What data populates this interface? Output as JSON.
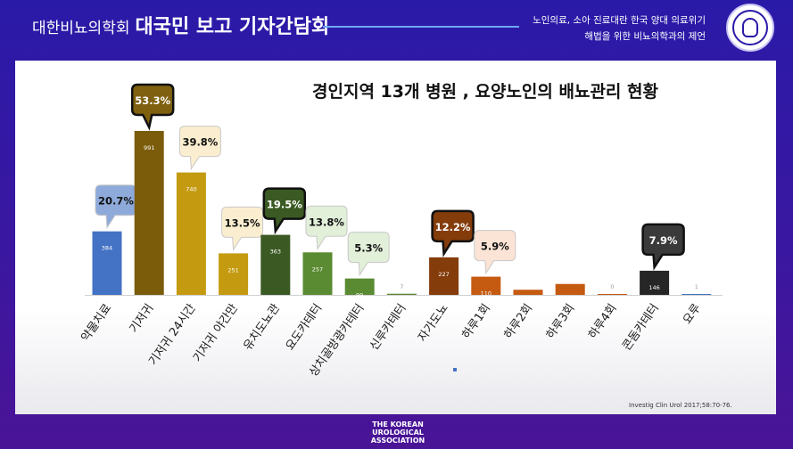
{
  "header": {
    "left_small": "대한비뇨의학회",
    "left_big": "대국민 보고 기자간담회",
    "right_line1": "노인의료, 소아 진료대란 한국 양대 의료위기",
    "right_line2": "해법을 위한 비뇨의학과의 제언"
  },
  "chart_data": {
    "type": "bar",
    "title": "경인지역 13개 병원 , 요양노인의 배뇨관리 현황",
    "categories": [
      "약물치료",
      "기저귀",
      "기저귀 24시간",
      "기저귀 야간만",
      "유치도뇨관",
      "요도카테터",
      "상치골방광카테터",
      "신루카테터",
      "자가도뇨",
      "하루1회",
      "하루2회",
      "하루3회",
      "하루4회",
      "콘돔카테터",
      "요루"
    ],
    "values": [
      384,
      991,
      740,
      251,
      363,
      257,
      99,
      7,
      227,
      110,
      31,
      66,
      0,
      146,
      1
    ],
    "percent_labels": [
      "20.7%",
      "53.3%",
      "39.8%",
      "13.5%",
      "19.5%",
      "13.8%",
      "5.3%",
      "",
      "12.2%",
      "5.9%",
      "",
      "",
      "",
      "7.9%",
      ""
    ],
    "colors": [
      "#4472c4",
      "#7a5c0a",
      "#c49a10",
      "#c49a10",
      "#3b5a23",
      "#5a8a32",
      "#5a8a32",
      "#5a8a32",
      "#843c0b",
      "#c55a11",
      "#c55a11",
      "#c55a11",
      "#c55a11",
      "#262626",
      "#4472c4"
    ],
    "callout_fills": [
      "#8eaadb",
      "#7f6010",
      "#fbeed0",
      "#fbeed0",
      "#3b5a23",
      "#e2efd9",
      "#e2efd9",
      "",
      "#843c0b",
      "#fbe4d5",
      "",
      "",
      "",
      "#3a3a3a",
      ""
    ],
    "callout_text_colors": [
      "#111111",
      "#ffffff",
      "#111111",
      "#111111",
      "#ffffff",
      "#111111",
      "#111111",
      "",
      "#ffffff",
      "#111111",
      "",
      "",
      "",
      "#ffffff",
      ""
    ],
    "ylim": [
      0,
      1000
    ]
  },
  "citation": "Investig Clin Urol 2017;58:70-76.",
  "footer": {
    "logo_line1": "THE KOREAN",
    "logo_line2": "UROLOGICAL",
    "logo_line3": "ASSOCIATION"
  }
}
